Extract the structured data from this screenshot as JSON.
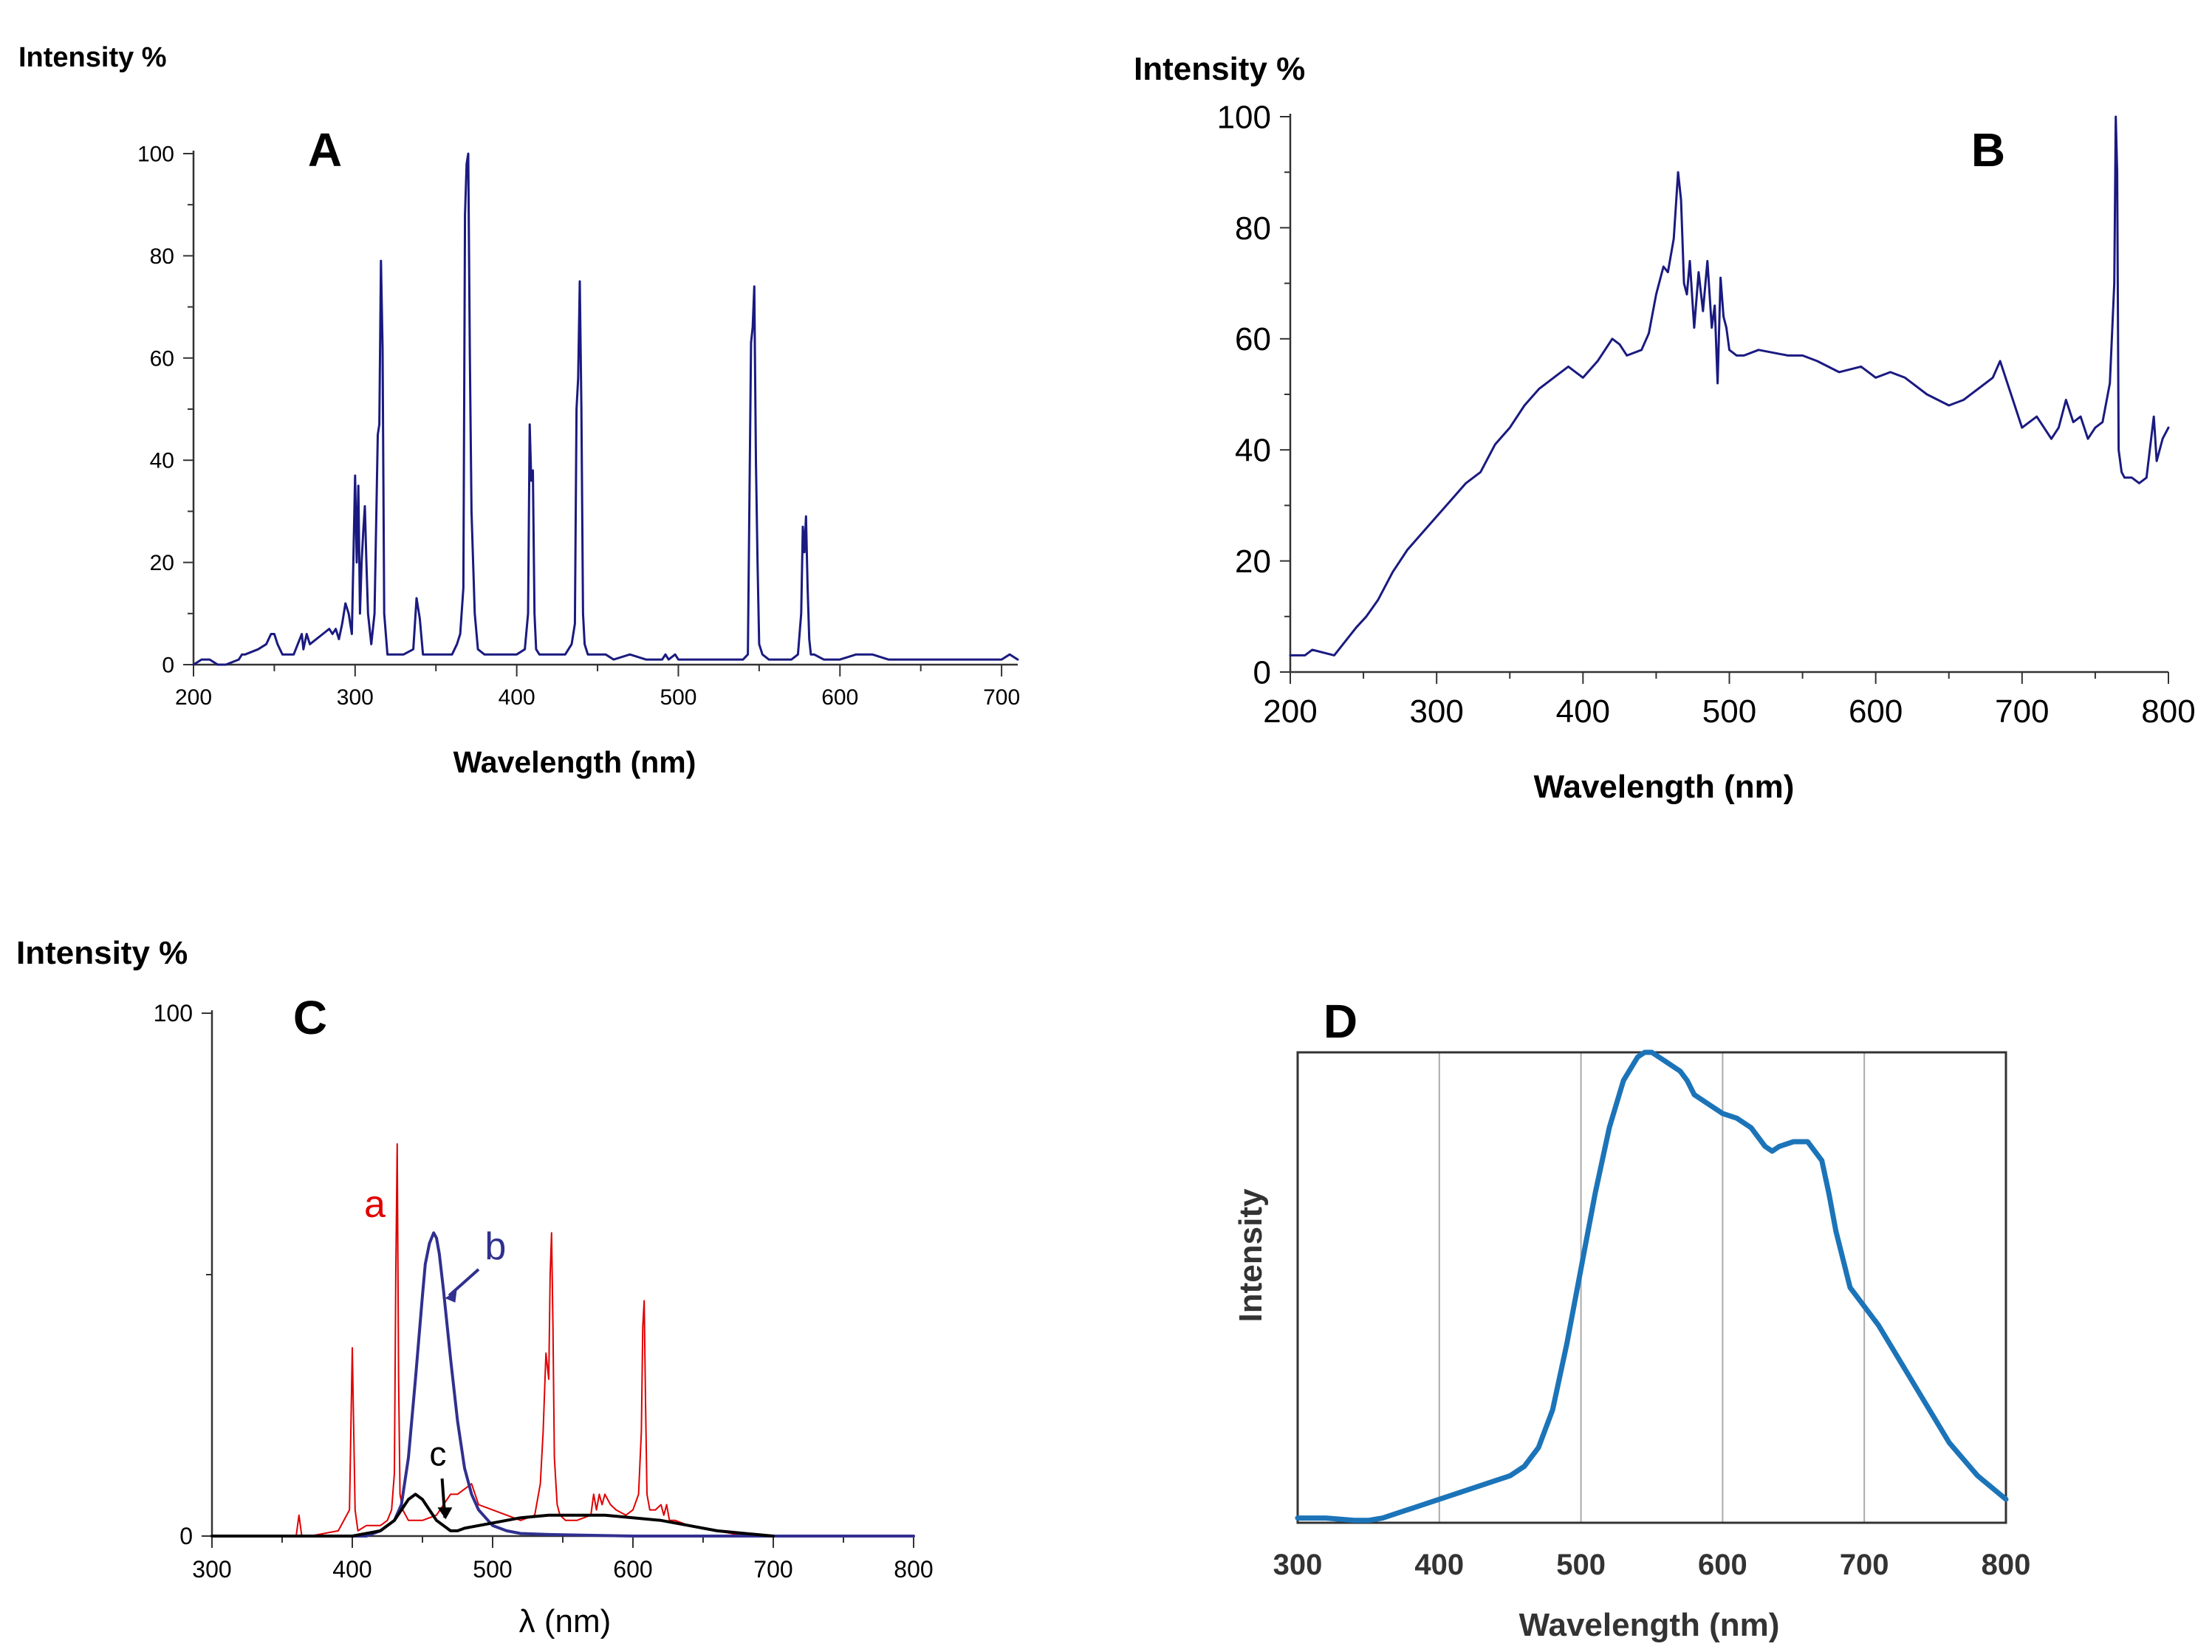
{
  "chart_data": [
    {
      "panel": "A",
      "type": "line",
      "title": "A",
      "ylabel": "Intensity %",
      "xlabel": "Wavelength (nm)",
      "xlim": [
        200,
        710
      ],
      "ylim": [
        0,
        100
      ],
      "xticks": [
        200,
        300,
        400,
        500,
        600,
        700
      ],
      "yticks": [
        0,
        20,
        40,
        60,
        80,
        100
      ],
      "color": "#1a1a80",
      "series": [
        {
          "name": "A",
          "x": [
            200,
            205,
            210,
            215,
            220,
            228,
            230,
            232,
            240,
            245,
            248,
            250,
            252,
            255,
            258,
            262,
            267,
            268,
            270,
            272,
            276,
            280,
            284,
            286,
            288,
            290,
            292,
            294,
            296,
            298,
            300,
            301,
            302,
            303,
            304,
            305,
            306,
            307,
            308,
            310,
            312,
            314,
            315,
            316,
            317,
            318,
            320,
            330,
            336,
            338,
            340,
            342,
            350,
            360,
            363,
            365,
            367,
            368,
            369,
            370,
            371,
            372,
            374,
            376,
            380,
            390,
            400,
            405,
            407,
            408,
            409,
            410,
            411,
            412,
            414,
            420,
            430,
            434,
            436,
            437,
            438,
            439,
            440,
            441,
            442,
            444,
            448,
            455,
            460,
            470,
            480,
            490,
            492,
            494,
            498,
            500,
            520,
            540,
            543,
            545,
            546,
            547,
            548,
            549,
            550,
            552,
            556,
            560,
            570,
            574,
            576,
            577,
            578,
            579,
            580,
            581,
            582,
            584,
            590,
            600,
            610,
            620,
            630,
            640,
            660,
            680,
            690,
            700,
            705,
            710
          ],
          "y": [
            0,
            1,
            1,
            0,
            0,
            1,
            2,
            2,
            3,
            4,
            6,
            6,
            4,
            2,
            2,
            2,
            6,
            3,
            6,
            4,
            5,
            6,
            7,
            6,
            7,
            5,
            8,
            12,
            10,
            6,
            37,
            20,
            35,
            10,
            20,
            26,
            31,
            20,
            10,
            4,
            10,
            45,
            47,
            79,
            62,
            10,
            2,
            2,
            3,
            13,
            9,
            2,
            2,
            2,
            4,
            6,
            15,
            88,
            98,
            100,
            60,
            30,
            10,
            3,
            2,
            2,
            2,
            3,
            10,
            47,
            36,
            38,
            10,
            3,
            2,
            2,
            2,
            4,
            8,
            50,
            56,
            75,
            50,
            10,
            4,
            2,
            2,
            2,
            1,
            2,
            1,
            1,
            2,
            1,
            2,
            1,
            1,
            1,
            2,
            63,
            66,
            74,
            40,
            20,
            4,
            2,
            1,
            1,
            1,
            2,
            10,
            27,
            22,
            29,
            15,
            5,
            2,
            2,
            1,
            1,
            2,
            2,
            1,
            1,
            1,
            1,
            1,
            1,
            2,
            1
          ]
        }
      ]
    },
    {
      "panel": "B",
      "type": "line",
      "title": "B",
      "ylabel": "Intensity %",
      "xlabel": "Wavelength (nm)",
      "xlim": [
        200,
        800
      ],
      "ylim": [
        0,
        100
      ],
      "xticks": [
        200,
        300,
        400,
        500,
        600,
        700,
        800
      ],
      "yticks": [
        0,
        20,
        40,
        60,
        80,
        100
      ],
      "color": "#1a1a80",
      "series": [
        {
          "name": "B",
          "x": [
            200,
            210,
            215,
            230,
            245,
            252,
            260,
            270,
            280,
            290,
            300,
            310,
            320,
            330,
            340,
            350,
            360,
            370,
            380,
            390,
            395,
            400,
            410,
            420,
            425,
            430,
            440,
            445,
            450,
            455,
            458,
            462,
            465,
            467,
            469,
            471,
            473,
            476,
            479,
            482,
            485,
            488,
            490,
            492,
            494,
            496,
            498,
            500,
            505,
            510,
            520,
            540,
            550,
            560,
            575,
            590,
            600,
            610,
            620,
            635,
            650,
            660,
            670,
            680,
            685,
            690,
            700,
            710,
            720,
            725,
            730,
            735,
            740,
            745,
            750,
            755,
            760,
            763,
            764,
            765,
            766,
            768,
            770,
            775,
            780,
            785,
            790,
            792,
            794,
            796,
            800
          ],
          "y": [
            3,
            3,
            4,
            3,
            8,
            10,
            13,
            18,
            22,
            25,
            28,
            31,
            34,
            36,
            41,
            44,
            48,
            51,
            53,
            55,
            54,
            53,
            56,
            60,
            59,
            57,
            58,
            61,
            68,
            73,
            72,
            78,
            90,
            85,
            70,
            68,
            74,
            62,
            72,
            65,
            74,
            62,
            66,
            52,
            71,
            64,
            62,
            58,
            57,
            57,
            58,
            57,
            57,
            56,
            54,
            55,
            53,
            54,
            53,
            50,
            48,
            49,
            51,
            53,
            56,
            52,
            44,
            46,
            42,
            44,
            49,
            45,
            46,
            42,
            44,
            45,
            52,
            70,
            100,
            90,
            40,
            36,
            35,
            35,
            34,
            35,
            46,
            38,
            40,
            42,
            44
          ]
        }
      ]
    },
    {
      "panel": "C",
      "type": "line",
      "title": "C",
      "ylabel": "Intensity %",
      "xlabel": "λ (nm)",
      "xlim": [
        300,
        800
      ],
      "ylim": [
        0,
        100
      ],
      "xticks": [
        300,
        400,
        500,
        600,
        700,
        800
      ],
      "yticks": [
        0,
        100
      ],
      "series": [
        {
          "name": "a",
          "label": "a",
          "color": "#e00000",
          "x": [
            300,
            350,
            360,
            362,
            364,
            370,
            390,
            398,
            400,
            402,
            404,
            410,
            420,
            425,
            428,
            430,
            431,
            432,
            433,
            434,
            436,
            440,
            450,
            460,
            470,
            475,
            480,
            485,
            490,
            500,
            510,
            520,
            530,
            534,
            536,
            538,
            540,
            541,
            542,
            543,
            544,
            546,
            548,
            552,
            560,
            570,
            572,
            574,
            576,
            578,
            580,
            584,
            588,
            595,
            600,
            604,
            606,
            607,
            608,
            609,
            610,
            612,
            616,
            620,
            622,
            624,
            626,
            630,
            640,
            660,
            680,
            700
          ],
          "y": [
            0,
            0,
            0,
            4,
            0,
            0,
            1,
            5,
            36,
            5,
            1,
            2,
            2,
            3,
            5,
            12,
            50,
            75,
            30,
            8,
            5,
            3,
            3,
            4,
            8,
            8,
            9,
            10,
            6,
            5,
            4,
            3,
            4,
            10,
            20,
            35,
            30,
            50,
            58,
            40,
            15,
            6,
            4,
            3,
            3,
            4,
            8,
            5,
            8,
            6,
            8,
            6,
            5,
            4,
            5,
            8,
            20,
            40,
            45,
            25,
            8,
            5,
            5,
            6,
            4,
            6,
            3,
            3,
            2,
            1,
            0,
            0
          ]
        },
        {
          "name": "b",
          "label": "b",
          "color": "#303090",
          "x": [
            300,
            380,
            400,
            410,
            420,
            430,
            435,
            440,
            445,
            450,
            452,
            455,
            458,
            460,
            462,
            465,
            470,
            475,
            480,
            485,
            490,
            500,
            510,
            520,
            540,
            560,
            600,
            700,
            800
          ],
          "y": [
            0,
            0,
            0,
            0,
            1,
            3,
            6,
            15,
            30,
            46,
            52,
            56,
            58,
            57,
            54,
            47,
            34,
            22,
            13,
            8,
            5,
            2,
            1,
            0.5,
            0.3,
            0.2,
            0,
            0,
            0
          ],
          "marker_label": "",
          "annotation_arrow": true
        },
        {
          "name": "c",
          "label": "c",
          "color": "#000000",
          "x": [
            300,
            400,
            420,
            430,
            435,
            440,
            445,
            450,
            455,
            460,
            465,
            470,
            475,
            480,
            490,
            500,
            520,
            540,
            560,
            580,
            600,
            620,
            640,
            660,
            680,
            700
          ],
          "y": [
            0,
            0,
            1,
            3,
            5,
            7,
            8,
            7,
            5,
            3,
            2,
            1,
            1,
            1.5,
            2,
            2.5,
            3.5,
            4,
            4,
            4,
            3.5,
            3,
            2,
            1,
            0.5,
            0
          ],
          "annotation_arrow": true
        }
      ]
    },
    {
      "panel": "D",
      "type": "line",
      "title": "D",
      "ylabel": "Intensity",
      "xlabel": "Wavelength (nm)",
      "xlim": [
        300,
        800
      ],
      "ylim": [
        0,
        100
      ],
      "xticks": [
        300,
        400,
        500,
        600,
        700,
        800
      ],
      "grid": "vertical",
      "color": "#1c74b8",
      "series": [
        {
          "name": "D",
          "x": [
            300,
            320,
            340,
            350,
            360,
            380,
            400,
            420,
            440,
            450,
            460,
            470,
            480,
            490,
            500,
            510,
            520,
            530,
            540,
            545,
            550,
            555,
            560,
            570,
            575,
            580,
            590,
            600,
            610,
            620,
            630,
            635,
            640,
            650,
            660,
            670,
            675,
            680,
            690,
            700,
            710,
            720,
            740,
            760,
            780,
            800
          ],
          "y": [
            1,
            1,
            0.5,
            0.5,
            1,
            3,
            5,
            7,
            9,
            10,
            12,
            16,
            24,
            38,
            54,
            70,
            84,
            94,
            99,
            100,
            100,
            99,
            98,
            96,
            94,
            91,
            89,
            87,
            86,
            84,
            80,
            79,
            80,
            81,
            81,
            77,
            70,
            62,
            50,
            46,
            42,
            37,
            27,
            17,
            10,
            5
          ]
        }
      ]
    }
  ]
}
